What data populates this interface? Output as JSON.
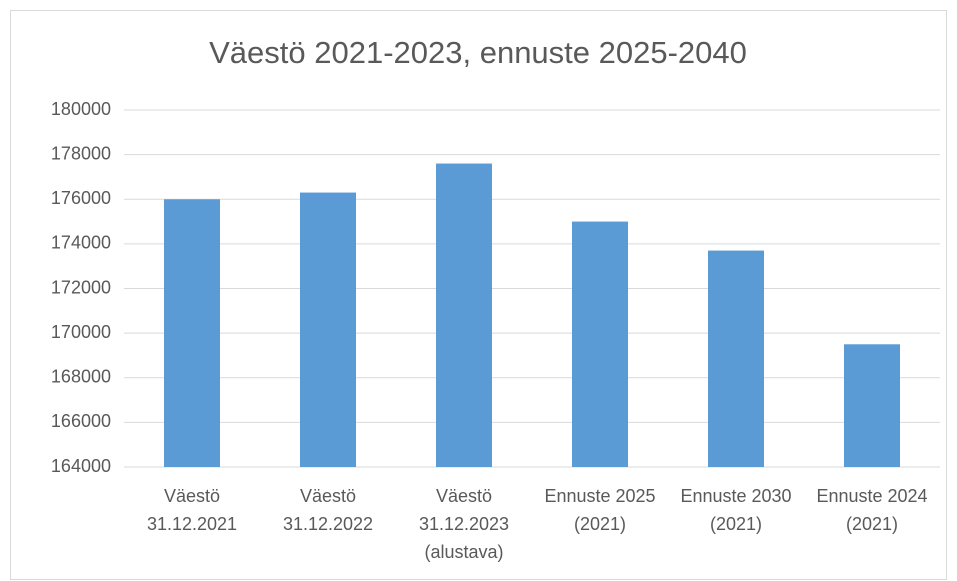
{
  "chart_data": {
    "type": "bar",
    "title": "Väestö 2021-2023, ennuste 2025-2040",
    "categories": [
      [
        "Väestö",
        "31.12.2021"
      ],
      [
        "Väestö",
        "31.12.2022"
      ],
      [
        "Väestö",
        "31.12.2023",
        "(alustava)"
      ],
      [
        "Ennuste 2025",
        "(2021)"
      ],
      [
        "Ennuste 2030",
        "(2021)"
      ],
      [
        "Ennuste 2024",
        "(2021)"
      ]
    ],
    "values": [
      176000,
      176300,
      177600,
      175000,
      173700,
      169500
    ],
    "color": "#5b9bd5",
    "ylim": [
      164000,
      180000
    ],
    "yticks": [
      164000,
      166000,
      168000,
      170000,
      172000,
      174000,
      176000,
      178000,
      180000
    ],
    "grid": true
  }
}
